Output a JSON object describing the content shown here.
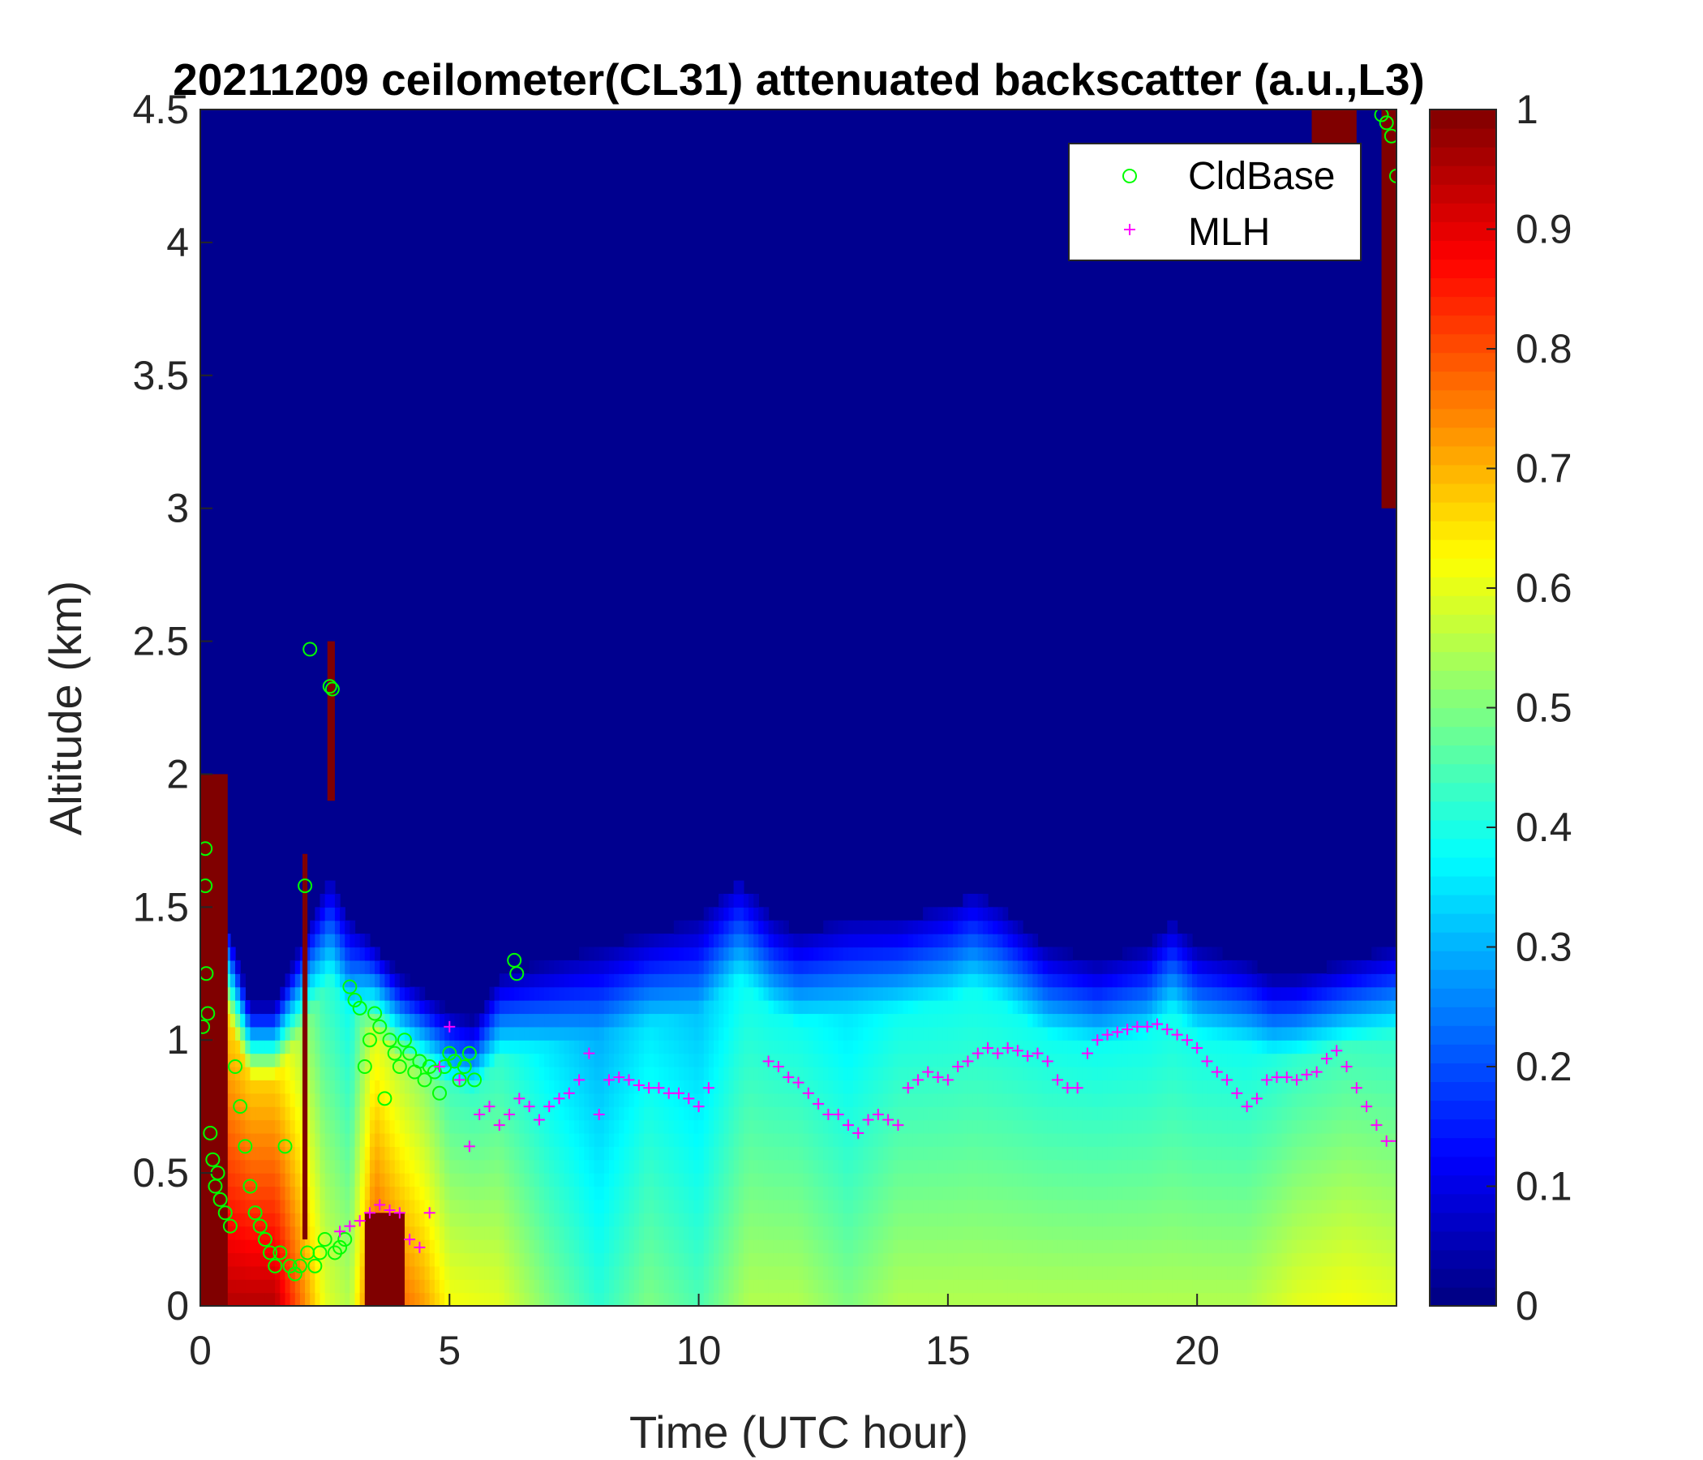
{
  "chart_data": {
    "type": "heatmap",
    "title": "20211209 ceilometer(CL31) attenuated backscatter (a.u.,L3)",
    "xlabel": "Time (UTC hour)",
    "ylabel": "Altitude (km)",
    "xlim": [
      0,
      24
    ],
    "ylim": [
      0,
      4.5
    ],
    "x_ticks": [
      0,
      5,
      10,
      15,
      20
    ],
    "x_tick_labels": [
      "0",
      "5",
      "10",
      "15",
      "20"
    ],
    "y_ticks": [
      0,
      0.5,
      1,
      1.5,
      2,
      2.5,
      3,
      3.5,
      4,
      4.5
    ],
    "y_tick_labels": [
      "0",
      "0.5",
      "1",
      "1.5",
      "2",
      "2.5",
      "3",
      "3.5",
      "4",
      "4.5"
    ],
    "colorbar": {
      "colormap": "jet",
      "clim": [
        0,
        1
      ],
      "ticks": [
        0,
        0.1,
        0.2,
        0.3,
        0.4,
        0.5,
        0.6,
        0.7,
        0.8,
        0.9,
        1
      ],
      "tick_labels": [
        "0",
        "0.1",
        "0.2",
        "0.3",
        "0.4",
        "0.5",
        "0.6",
        "0.7",
        "0.8",
        "0.9",
        "1"
      ]
    },
    "legend": {
      "placement": "top-right",
      "entries": [
        {
          "label": "CldBase",
          "marker": "circle",
          "color": "#00ff00"
        },
        {
          "label": "MLH",
          "marker": "plus",
          "color": "#ff00ff"
        }
      ]
    },
    "boundary_layer": {
      "top_km": [
        [
          0,
          1.7
        ],
        [
          0.5,
          1.3
        ],
        [
          1,
          1.0
        ],
        [
          1.5,
          1.0
        ],
        [
          2,
          1.2
        ],
        [
          2.6,
          1.45
        ],
        [
          3,
          1.3
        ],
        [
          3.5,
          1.2
        ],
        [
          4,
          1.1
        ],
        [
          5,
          0.98
        ],
        [
          5.5,
          0.95
        ],
        [
          6,
          1.1
        ],
        [
          7,
          1.15
        ],
        [
          8,
          1.2
        ],
        [
          9,
          1.25
        ],
        [
          10,
          1.3
        ],
        [
          10.8,
          1.45
        ],
        [
          11.5,
          1.3
        ],
        [
          12,
          1.25
        ],
        [
          13,
          1.3
        ],
        [
          14,
          1.3
        ],
        [
          15,
          1.35
        ],
        [
          15.5,
          1.4
        ],
        [
          16,
          1.35
        ],
        [
          17,
          1.2
        ],
        [
          18,
          1.15
        ],
        [
          19,
          1.2
        ],
        [
          19.5,
          1.3
        ],
        [
          20,
          1.2
        ],
        [
          21,
          1.15
        ],
        [
          21.5,
          1.1
        ],
        [
          22,
          1.1
        ],
        [
          23,
          1.15
        ],
        [
          24,
          1.2
        ]
      ],
      "surface_values": [
        [
          0,
          0.95
        ],
        [
          1.5,
          0.95
        ],
        [
          2.5,
          0.6
        ],
        [
          3,
          0.55
        ],
        [
          3.5,
          0.85
        ],
        [
          4,
          0.78
        ],
        [
          4.5,
          0.72
        ],
        [
          5,
          0.62
        ],
        [
          6,
          0.6
        ],
        [
          7,
          0.5
        ],
        [
          8,
          0.42
        ],
        [
          9,
          0.5
        ],
        [
          10,
          0.45
        ],
        [
          11,
          0.55
        ],
        [
          12,
          0.55
        ],
        [
          13,
          0.5
        ],
        [
          14,
          0.55
        ],
        [
          15,
          0.55
        ],
        [
          16,
          0.55
        ],
        [
          17,
          0.55
        ],
        [
          18,
          0.55
        ],
        [
          19,
          0.55
        ],
        [
          20,
          0.55
        ],
        [
          21,
          0.55
        ],
        [
          22,
          0.6
        ],
        [
          23,
          0.62
        ],
        [
          24,
          0.6
        ]
      ]
    },
    "high_backscatter_features": [
      {
        "time_range": [
          0,
          0.55
        ],
        "altitude_range": [
          0,
          2.0
        ]
      },
      {
        "time_range": [
          2.05,
          2.15
        ],
        "altitude_range": [
          0.25,
          1.7
        ]
      },
      {
        "time_range": [
          2.55,
          2.7
        ],
        "altitude_range": [
          1.9,
          2.5
        ]
      },
      {
        "time_range": [
          3.3,
          4.1
        ],
        "altitude_range": [
          0,
          0.35
        ]
      },
      {
        "time_range": [
          22.3,
          23.2
        ],
        "altitude_range": [
          4.3,
          4.5
        ]
      },
      {
        "time_range": [
          23.7,
          24.0
        ],
        "altitude_range": [
          3.0,
          4.5
        ]
      }
    ],
    "series": [
      {
        "name": "CldBase",
        "x": [
          0.05,
          0.1,
          0.1,
          0.12,
          0.15,
          0.2,
          0.25,
          0.3,
          0.35,
          0.4,
          0.5,
          0.6,
          0.7,
          0.8,
          0.9,
          1.0,
          1.1,
          1.2,
          1.3,
          1.4,
          1.5,
          1.6,
          1.7,
          1.8,
          1.9,
          2.0,
          2.1,
          2.15,
          2.2,
          2.3,
          2.4,
          2.5,
          2.6,
          2.65,
          2.7,
          2.8,
          2.9,
          3.0,
          3.1,
          3.2,
          3.3,
          3.4,
          3.5,
          3.6,
          3.7,
          3.8,
          3.9,
          4.0,
          4.1,
          4.2,
          4.3,
          4.4,
          4.5,
          4.6,
          4.7,
          4.8,
          4.9,
          5.0,
          5.1,
          5.2,
          5.3,
          5.4,
          5.5,
          6.3,
          6.35,
          23.7,
          23.8,
          23.9,
          24.0
        ],
        "y": [
          1.05,
          1.58,
          1.72,
          1.25,
          1.1,
          0.65,
          0.55,
          0.45,
          0.5,
          0.4,
          0.35,
          0.3,
          0.9,
          0.75,
          0.6,
          0.45,
          0.35,
          0.3,
          0.25,
          0.2,
          0.15,
          0.2,
          0.6,
          0.15,
          0.12,
          0.15,
          1.58,
          0.2,
          2.47,
          0.15,
          0.2,
          0.25,
          2.33,
          2.32,
          0.2,
          0.22,
          0.25,
          1.2,
          1.15,
          1.12,
          0.9,
          1.0,
          1.1,
          1.05,
          0.78,
          1.0,
          0.95,
          0.9,
          1.0,
          0.95,
          0.88,
          0.92,
          0.85,
          0.9,
          0.88,
          0.8,
          0.9,
          0.95,
          0.92,
          0.85,
          0.9,
          0.95,
          0.85,
          1.3,
          1.25,
          4.48,
          4.45,
          4.4,
          4.25
        ]
      },
      {
        "name": "MLH",
        "x": [
          2.8,
          3.0,
          3.2,
          3.4,
          3.6,
          3.8,
          4.0,
          4.2,
          4.4,
          4.6,
          4.8,
          5.0,
          5.2,
          5.4,
          5.6,
          5.8,
          6.0,
          6.2,
          6.4,
          6.6,
          6.8,
          7.0,
          7.2,
          7.4,
          7.6,
          7.8,
          8.0,
          8.2,
          8.4,
          8.6,
          8.8,
          9.0,
          9.2,
          9.4,
          9.6,
          9.8,
          10.0,
          10.2,
          11.4,
          11.6,
          11.8,
          12.0,
          12.2,
          12.4,
          12.6,
          12.8,
          13.0,
          13.2,
          13.4,
          13.6,
          13.8,
          14.0,
          14.2,
          14.4,
          14.6,
          14.8,
          15.0,
          15.2,
          15.4,
          15.6,
          15.8,
          16.0,
          16.2,
          16.4,
          16.6,
          16.8,
          17.0,
          17.2,
          17.4,
          17.6,
          17.8,
          18.0,
          18.2,
          18.4,
          18.6,
          18.8,
          19.0,
          19.2,
          19.4,
          19.6,
          19.8,
          20.0,
          20.2,
          20.4,
          20.6,
          20.8,
          21.0,
          21.2,
          21.4,
          21.6,
          21.8,
          22.0,
          22.2,
          22.4,
          22.6,
          22.8,
          23.0,
          23.2,
          23.4,
          23.6,
          23.8,
          24.0
        ],
        "y": [
          0.28,
          0.3,
          0.32,
          0.35,
          0.38,
          0.36,
          0.35,
          0.25,
          0.22,
          0.35,
          0.9,
          1.05,
          0.85,
          0.6,
          0.72,
          0.75,
          0.68,
          0.72,
          0.78,
          0.75,
          0.7,
          0.75,
          0.78,
          0.8,
          0.85,
          0.95,
          0.72,
          0.85,
          0.86,
          0.85,
          0.83,
          0.82,
          0.82,
          0.8,
          0.8,
          0.78,
          0.75,
          0.82,
          0.92,
          0.9,
          0.86,
          0.84,
          0.8,
          0.76,
          0.72,
          0.72,
          0.68,
          0.65,
          0.7,
          0.72,
          0.7,
          0.68,
          0.82,
          0.85,
          0.88,
          0.86,
          0.85,
          0.9,
          0.92,
          0.95,
          0.97,
          0.95,
          0.97,
          0.96,
          0.94,
          0.95,
          0.92,
          0.85,
          0.82,
          0.82,
          0.95,
          1.0,
          1.02,
          1.03,
          1.04,
          1.05,
          1.05,
          1.06,
          1.04,
          1.02,
          1.0,
          0.97,
          0.92,
          0.88,
          0.85,
          0.8,
          0.75,
          0.78,
          0.85,
          0.86,
          0.86,
          0.85,
          0.87,
          0.88,
          0.93,
          0.96,
          0.9,
          0.82,
          0.75,
          0.68,
          0.62,
          0.62
        ]
      }
    ]
  }
}
